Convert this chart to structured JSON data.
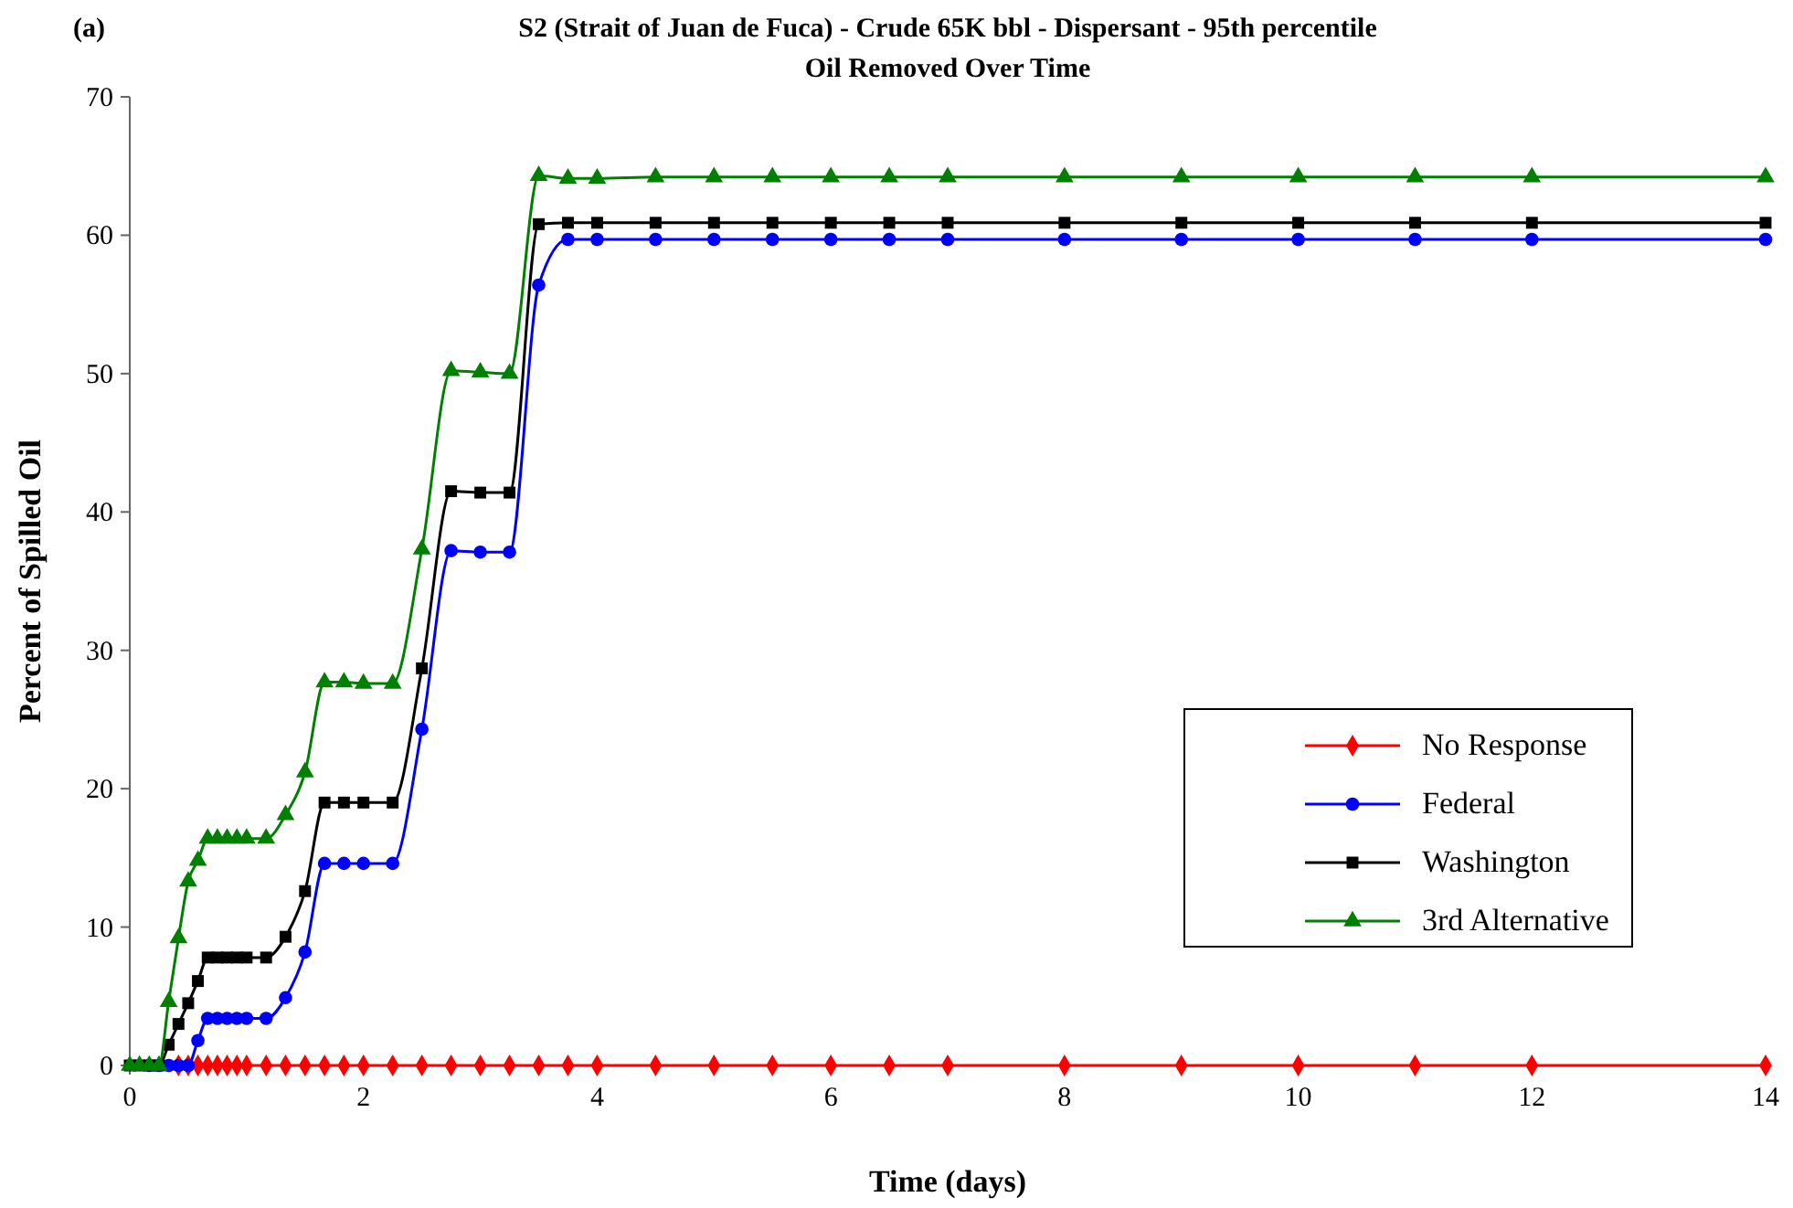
{
  "chart_data": {
    "type": "line",
    "title": "S2 (Strait of Juan de Fuca) - Crude 65K bbl - Dispersant - 95th percentile",
    "subtitle": "Oil Removed Over Time",
    "xlabel": "Time (days)",
    "ylabel": "Percent of Spilled Oil",
    "annotations": [
      "(a)"
    ],
    "x": [
      0,
      0.083,
      0.167,
      0.25,
      0.333,
      0.417,
      0.5,
      0.583,
      0.667,
      0.75,
      0.833,
      0.917,
      1,
      1.167,
      1.333,
      1.5,
      1.667,
      1.833,
      2,
      2.25,
      2.5,
      2.75,
      3,
      3.25,
      3.5,
      3.75,
      4,
      4.5,
      5,
      5.5,
      6,
      6.5,
      7,
      8,
      9,
      10,
      11,
      12,
      14
    ],
    "series": [
      {
        "name": "No Response",
        "color": "#ff0000",
        "marker": "diamond",
        "values": [
          null,
          null,
          null,
          null,
          null,
          0,
          0,
          0,
          0,
          0,
          0,
          0,
          0,
          0,
          0,
          0,
          0,
          0,
          0,
          0,
          0,
          0,
          0,
          0,
          0,
          0,
          0,
          0,
          0,
          0,
          0,
          0,
          0,
          0,
          0,
          0,
          0,
          0,
          0
        ]
      },
      {
        "name": "Federal",
        "color": "#0000ff",
        "marker": "circle",
        "values": [
          null,
          null,
          0,
          0,
          0,
          0,
          0,
          1.8,
          3.4,
          3.4,
          3.4,
          3.4,
          3.4,
          3.4,
          4.9,
          8.2,
          14.6,
          14.6,
          14.6,
          14.6,
          24.3,
          37.2,
          37.1,
          37.1,
          56.4,
          59.7,
          59.7,
          59.7,
          59.7,
          59.7,
          59.7,
          59.7,
          59.7,
          59.7,
          59.7,
          59.7,
          59.7,
          59.7,
          59.7
        ]
      },
      {
        "name": "Washington",
        "color": "#000000",
        "marker": "square",
        "values": [
          0,
          0,
          0,
          0,
          1.5,
          3.0,
          4.5,
          6.1,
          7.8,
          7.8,
          7.8,
          7.8,
          7.8,
          7.8,
          9.3,
          12.6,
          19.0,
          19.0,
          19.0,
          19.0,
          28.7,
          41.5,
          41.4,
          41.4,
          60.8,
          60.9,
          60.9,
          60.9,
          60.9,
          60.9,
          60.9,
          60.9,
          60.9,
          60.9,
          60.9,
          60.9,
          60.9,
          60.9,
          60.9
        ]
      },
      {
        "name": "3rd Alternative",
        "color": "#008000",
        "marker": "triangle",
        "values": [
          0,
          0,
          0,
          0,
          4.6,
          9.2,
          13.3,
          14.8,
          16.4,
          16.4,
          16.4,
          16.4,
          16.4,
          16.4,
          18.1,
          21.2,
          27.7,
          27.7,
          27.6,
          27.6,
          37.3,
          50.2,
          50.1,
          50.0,
          64.3,
          64.1,
          64.1,
          64.2,
          64.2,
          64.2,
          64.2,
          64.2,
          64.2,
          64.2,
          64.2,
          64.2,
          64.2,
          64.2,
          64.2
        ]
      }
    ],
    "xlim": [
      0,
      14
    ],
    "xticks": [
      0,
      2,
      4,
      6,
      8,
      10,
      12,
      14
    ],
    "ylim": [
      0,
      70
    ],
    "yticks": [
      0,
      10,
      20,
      30,
      40,
      50,
      60,
      70
    ],
    "grid": false,
    "legend": "right",
    "line_style": "solid"
  }
}
